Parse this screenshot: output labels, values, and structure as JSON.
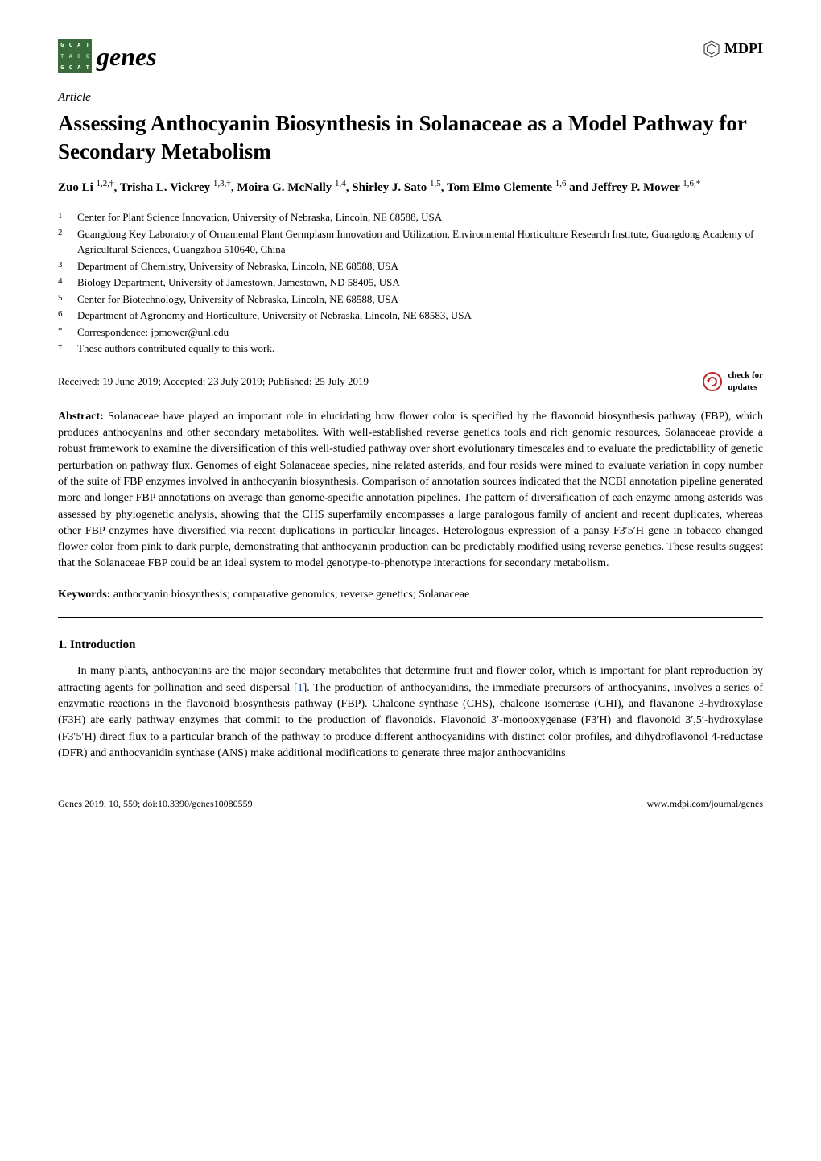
{
  "journal": {
    "name": "genes",
    "logo_colors": {
      "row1_bg": "#3a6b3a",
      "row1_fg": "#ffffff",
      "row2_bg": "#3a6b3a",
      "row2_fg": "#a8d8a8",
      "row3_bg": "#3a6b3a",
      "row3_fg": "#ffffff"
    },
    "logo_letters": [
      [
        "G",
        "C",
        "A",
        "T"
      ],
      [
        "T",
        "A",
        "C",
        "G"
      ],
      [
        "G",
        "C",
        "A",
        "T"
      ]
    ]
  },
  "publisher": {
    "name": "MDPI",
    "hex_stroke": "#444444"
  },
  "article_type": "Article",
  "title": "Assessing Anthocyanin Biosynthesis in Solanaceae as a Model Pathway for Secondary Metabolism",
  "authors_html": "Zuo Li <sup>1,2,†</sup>, Trisha L. Vickrey <sup>1,3,†</sup>, Moira G. McNally <sup>1,4</sup>, Shirley J. Sato <sup>1,5</sup>, Tom Elmo Clemente <sup>1,6</sup> and Jeffrey P. Mower <sup>1,6,*</sup>",
  "affiliations": [
    {
      "n": "1",
      "text": "Center for Plant Science Innovation, University of Nebraska, Lincoln, NE 68588, USA"
    },
    {
      "n": "2",
      "text": "Guangdong Key Laboratory of Ornamental Plant Germplasm Innovation and Utilization, Environmental Horticulture Research Institute, Guangdong Academy of Agricultural Sciences, Guangzhou 510640, China"
    },
    {
      "n": "3",
      "text": "Department of Chemistry, University of Nebraska, Lincoln, NE 68588, USA"
    },
    {
      "n": "4",
      "text": "Biology Department, University of Jamestown, Jamestown, ND 58405, USA"
    },
    {
      "n": "5",
      "text": "Center for Biotechnology, University of Nebraska, Lincoln, NE 68588, USA"
    },
    {
      "n": "6",
      "text": "Department of Agronomy and Horticulture, University of Nebraska, Lincoln, NE 68583, USA"
    },
    {
      "n": "*",
      "text": "Correspondence: jpmower@unl.edu"
    },
    {
      "n": "†",
      "text": "These authors contributed equally to this work."
    }
  ],
  "dates": "Received: 19 June 2019; Accepted: 23 July 2019; Published: 25 July 2019",
  "updates_badge": {
    "line1": "check for",
    "line2": "updates",
    "stroke": "#b82828",
    "fill": "#ffffff"
  },
  "abstract_label": "Abstract:",
  "abstract_text": " Solanaceae have played an important role in elucidating how flower color is specified by the flavonoid biosynthesis pathway (FBP), which produces anthocyanins and other secondary metabolites. With well-established reverse genetics tools and rich genomic resources, Solanaceae provide a robust framework to examine the diversification of this well-studied pathway over short evolutionary timescales and to evaluate the predictability of genetic perturbation on pathway flux. Genomes of eight Solanaceae species, nine related asterids, and four rosids were mined to evaluate variation in copy number of the suite of FBP enzymes involved in anthocyanin biosynthesis. Comparison of annotation sources indicated that the NCBI annotation pipeline generated more and longer FBP annotations on average than genome-specific annotation pipelines. The pattern of diversification of each enzyme among asterids was assessed by phylogenetic analysis, showing that the CHS superfamily encompasses a large paralogous family of ancient and recent duplicates, whereas other FBP enzymes have diversified via recent duplications in particular lineages. Heterologous expression of a pansy F3′5′H gene in tobacco changed flower color from pink to dark purple, demonstrating that anthocyanin production can be predictably modified using reverse genetics. These results suggest that the Solanaceae FBP could be an ideal system to model genotype-to-phenotype interactions for secondary metabolism.",
  "keywords_label": "Keywords:",
  "keywords_text": " anthocyanin biosynthesis; comparative genomics; reverse genetics; Solanaceae",
  "section1_heading": "1. Introduction",
  "intro_para_pre": "In many plants, anthocyanins are the major secondary metabolites that determine fruit and flower color, which is important for plant reproduction by attracting agents for pollination and seed dispersal [",
  "intro_ref1": "1",
  "intro_para_post": "]. The production of anthocyanidins, the immediate precursors of anthocyanins, involves a series of enzymatic reactions in the flavonoid biosynthesis pathway (FBP). Chalcone synthase (CHS), chalcone isomerase (CHI), and flavanone 3-hydroxylase (F3H) are early pathway enzymes that commit to the production of flavonoids. Flavonoid 3′-monooxygenase (F3′H) and flavonoid 3′,5′-hydroxylase (F3′5′H) direct flux to a particular branch of the pathway to produce different anthocyanidins with distinct color profiles, and dihydroflavonol 4-reductase (DFR) and anthocyanidin synthase (ANS) make additional modifications to generate three major anthocyanidins",
  "footer": {
    "left": "Genes 2019, 10, 559; doi:10.3390/genes10080559",
    "right": "www.mdpi.com/journal/genes"
  },
  "colors": {
    "text": "#000000",
    "background": "#ffffff",
    "link": "#0645ad"
  },
  "fonts": {
    "body_family": "Palatino Linotype, Book Antiqua, Palatino, serif",
    "title_size_pt": 20,
    "body_size_pt": 10.5,
    "abstract_size_pt": 10.5,
    "affil_size_pt": 9.5,
    "footer_size_pt": 9
  }
}
